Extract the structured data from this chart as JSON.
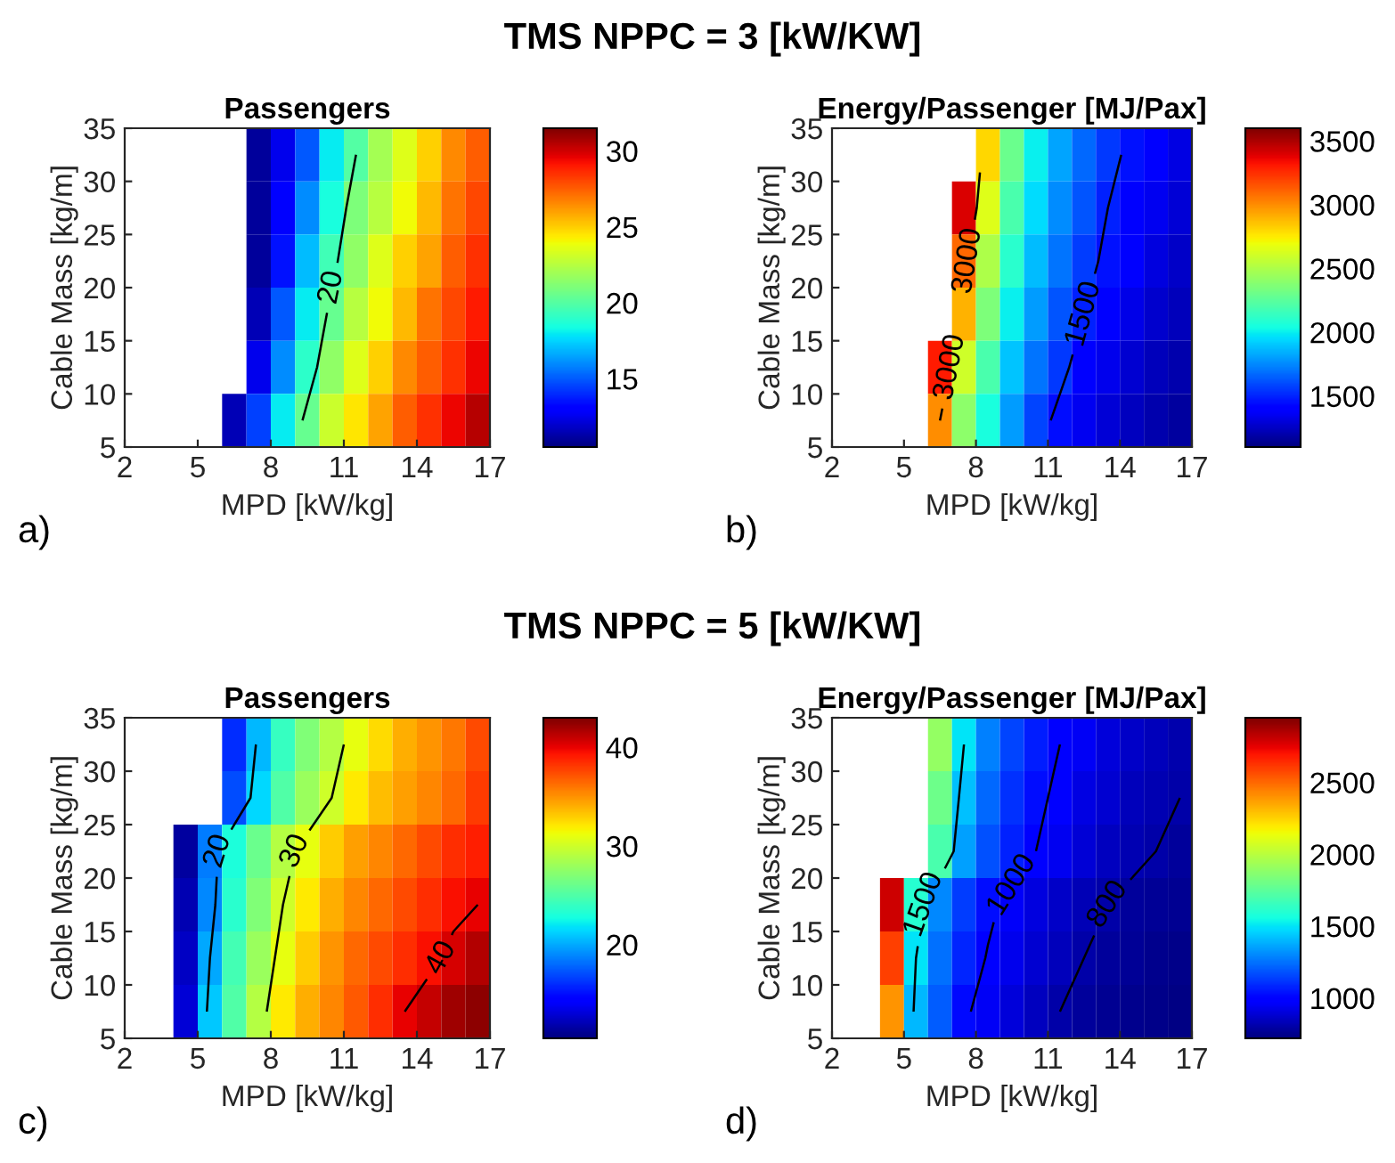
{
  "chart_data": [
    {
      "type": "heatmap",
      "title": "TMS NPPC = 3 [kW/KW]",
      "subtitle": "Passengers",
      "xlabel": "MPD [kW/kg]",
      "ylabel": "Cable Mass [kg/m]",
      "x": [
        2.5,
        3.5,
        4.5,
        5.5,
        6.5,
        7.5,
        8.5,
        9.5,
        10.5,
        11.5,
        12.5,
        13.5,
        14.5,
        15.5,
        16.5
      ],
      "y": [
        32.5,
        27.5,
        22.5,
        17.5,
        12.5,
        7.5
      ],
      "xlim": [
        2,
        17
      ],
      "xticks": [
        2,
        5,
        8,
        11,
        14,
        17
      ],
      "ylim": [
        5,
        35
      ],
      "yticks": [
        5,
        10,
        15,
        20,
        25,
        30,
        35
      ],
      "clim": [
        10.5,
        31.5
      ],
      "cticks": [
        15,
        20,
        25,
        30
      ],
      "cells": [
        [
          null,
          null,
          null,
          null,
          null,
          11,
          12.5,
          15,
          18,
          20,
          22,
          23.5,
          25,
          26.5,
          27.5
        ],
        [
          null,
          null,
          null,
          null,
          null,
          11,
          13,
          16,
          18.5,
          21,
          22.5,
          24,
          25.5,
          27,
          28
        ],
        [
          null,
          null,
          null,
          null,
          null,
          11,
          13.5,
          17,
          19.5,
          21.5,
          23.5,
          25,
          26,
          27.5,
          28.5
        ],
        [
          null,
          null,
          null,
          null,
          null,
          11.5,
          15,
          18,
          20.5,
          22.5,
          24,
          25.5,
          27,
          28,
          29
        ],
        [
          null,
          null,
          null,
          null,
          null,
          12.5,
          16,
          19,
          21.5,
          23.5,
          25,
          26.5,
          27.5,
          28.5,
          29.5
        ],
        [
          null,
          null,
          null,
          null,
          11.5,
          14.5,
          18,
          20.5,
          23,
          24.5,
          26,
          27.5,
          28.5,
          29.5,
          30.5
        ]
      ],
      "annotations": [
        "20",
        "a)"
      ]
    },
    {
      "type": "heatmap",
      "title": "Energy/Passenger [MJ/Pax]",
      "xlabel": "MPD [kW/kg]",
      "ylabel": "Cable Mass [kg/m]",
      "x": [
        2.5,
        3.5,
        4.5,
        5.5,
        6.5,
        7.5,
        8.5,
        9.5,
        10.5,
        11.5,
        12.5,
        13.5,
        14.5,
        15.5,
        16.5
      ],
      "y": [
        32.5,
        27.5,
        22.5,
        17.5,
        12.5,
        7.5
      ],
      "xlim": [
        2,
        17
      ],
      "xticks": [
        2,
        5,
        8,
        11,
        14,
        17
      ],
      "ylim": [
        5,
        35
      ],
      "yticks": [
        5,
        10,
        15,
        20,
        25,
        30,
        35
      ],
      "clim": [
        1100,
        3600
      ],
      "cticks": [
        1500,
        2000,
        2500,
        3000,
        3500
      ],
      "cells": [
        [
          null,
          null,
          null,
          null,
          null,
          null,
          2800,
          2300,
          2000,
          1820,
          1670,
          1550,
          1460,
          1380,
          1320
        ],
        [
          null,
          null,
          null,
          null,
          null,
          3400,
          2650,
          2200,
          1950,
          1760,
          1620,
          1500,
          1420,
          1350,
          1290
        ],
        [
          null,
          null,
          null,
          null,
          null,
          3100,
          2500,
          2100,
          1880,
          1700,
          1560,
          1460,
          1380,
          1310,
          1260
        ],
        [
          null,
          null,
          null,
          null,
          null,
          2900,
          2350,
          2000,
          1800,
          1620,
          1500,
          1400,
          1330,
          1270,
          1230
        ],
        [
          null,
          null,
          null,
          null,
          3300,
          2600,
          2200,
          1900,
          1700,
          1550,
          1420,
          1340,
          1280,
          1230,
          1200
        ],
        [
          null,
          null,
          null,
          null,
          3000,
          2400,
          2050,
          1800,
          1580,
          1450,
          1350,
          1290,
          1240,
          1200,
          1170
        ]
      ],
      "annotations": [
        "3000",
        "1500",
        "b)"
      ]
    },
    {
      "type": "heatmap",
      "title": "TMS NPPC = 5 [kW/KW]",
      "subtitle": "Passengers",
      "xlabel": "MPD [kW/kg]",
      "ylabel": "Cable Mass [kg/m]",
      "x": [
        2.5,
        3.5,
        4.5,
        5.5,
        6.5,
        7.5,
        8.5,
        9.5,
        10.5,
        11.5,
        12.5,
        13.5,
        14.5,
        15.5,
        16.5
      ],
      "y": [
        32.5,
        27.5,
        22.5,
        17.5,
        12.5,
        7.5
      ],
      "xlim": [
        2,
        17
      ],
      "xticks": [
        2,
        5,
        8,
        11,
        14,
        17
      ],
      "ylim": [
        5,
        35
      ],
      "yticks": [
        5,
        10,
        15,
        20,
        25,
        30,
        35
      ],
      "clim": [
        10.5,
        43
      ],
      "cticks": [
        20,
        30,
        40
      ],
      "cells": [
        [
          null,
          null,
          null,
          null,
          16,
          20.5,
          24,
          27,
          29,
          31,
          32.5,
          34,
          35,
          36,
          37.5
        ],
        [
          null,
          null,
          null,
          null,
          17,
          21.5,
          25,
          28,
          30,
          32,
          33.5,
          34.5,
          35.5,
          36.5,
          38
        ],
        [
          null,
          null,
          11.5,
          18.5,
          23,
          26,
          29,
          31,
          33,
          34.5,
          35.5,
          36.5,
          37.5,
          38.5,
          39
        ],
        [
          null,
          null,
          12,
          19,
          23.5,
          27,
          30,
          32,
          34,
          35.5,
          36.5,
          37.5,
          38.5,
          39.5,
          40
        ],
        [
          null,
          null,
          12.5,
          20,
          24.5,
          28,
          31,
          33,
          35,
          36.5,
          37.5,
          38.5,
          39.5,
          40.5,
          41.5
        ],
        [
          null,
          null,
          13,
          21,
          25,
          29,
          32,
          34,
          35.5,
          37,
          38.5,
          40,
          41,
          42,
          42.5
        ]
      ],
      "annotations": [
        "20",
        "30",
        "40",
        "c)"
      ]
    },
    {
      "type": "heatmap",
      "title": "Energy/Passenger [MJ/Pax]",
      "xlabel": "MPD [kW/kg]",
      "ylabel": "Cable Mass [kg/m]",
      "x": [
        2.5,
        3.5,
        4.5,
        5.5,
        6.5,
        7.5,
        8.5,
        9.5,
        10.5,
        11.5,
        12.5,
        13.5,
        14.5,
        15.5,
        16.5
      ],
      "y": [
        32.5,
        27.5,
        22.5,
        17.5,
        12.5,
        7.5
      ],
      "xlim": [
        2,
        17
      ],
      "xticks": [
        2,
        5,
        8,
        11,
        14,
        17
      ],
      "ylim": [
        5,
        35
      ],
      "yticks": [
        5,
        10,
        15,
        20,
        25,
        30,
        35
      ],
      "clim": [
        720,
        2950
      ],
      "cticks": [
        1000,
        1500,
        2000,
        2500
      ],
      "cells": [
        [
          null,
          null,
          null,
          null,
          1900,
          1500,
          1280,
          1150,
          1060,
          1000,
          950,
          900,
          865,
          840,
          815
        ],
        [
          null,
          null,
          null,
          null,
          1800,
          1420,
          1230,
          1110,
          1030,
          970,
          920,
          880,
          840,
          820,
          800
        ],
        [
          null,
          null,
          null,
          null,
          1700,
          1350,
          1180,
          1070,
          1000,
          940,
          890,
          850,
          820,
          800,
          780
        ],
        [
          null,
          null,
          2800,
          1600,
          1300,
          1130,
          1030,
          960,
          910,
          860,
          830,
          800,
          780,
          765,
          755
        ],
        [
          null,
          null,
          2600,
          1500,
          1250,
          1080,
          990,
          930,
          880,
          840,
          800,
          780,
          765,
          750,
          740
        ],
        [
          null,
          null,
          2400,
          1400,
          1200,
          1020,
          950,
          900,
          850,
          800,
          780,
          760,
          750,
          740,
          730
        ]
      ],
      "annotations": [
        "1500",
        "1000",
        "800",
        "d)"
      ]
    }
  ]
}
